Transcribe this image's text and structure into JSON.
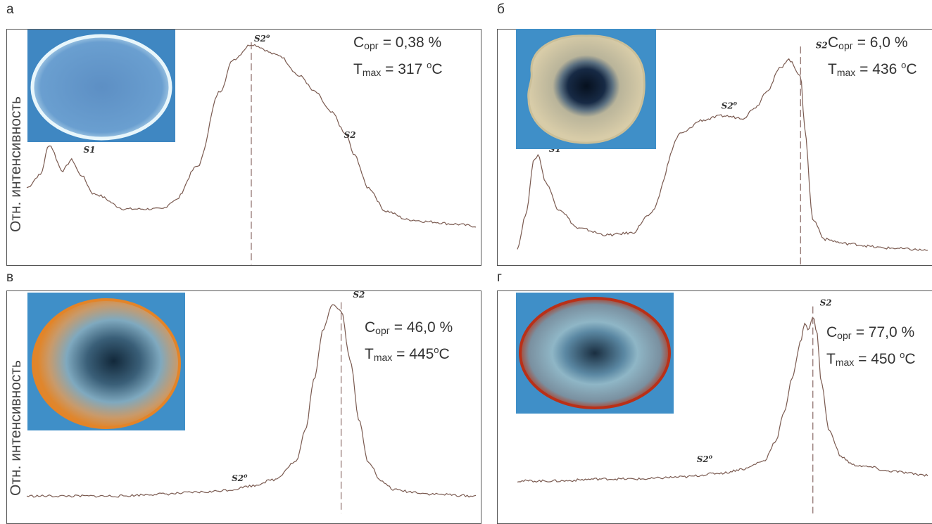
{
  "colors": {
    "curve": "#7a5a50",
    "dash": "#8a6a66",
    "frame": "#555555",
    "thumb_bg": "#3d8cc4"
  },
  "chart_data": [
    {
      "type": "line",
      "panel_letter": "а",
      "ylabel": "Отн. интенсивность",
      "stats": {
        "c_label": "C",
        "c_sub": "орг",
        "c_value": " = 0,38 %",
        "t_label": "T",
        "t_sub": "max",
        "t_value": " = 317 ",
        "t_deg": "o",
        "t_unit": "C"
      },
      "peaks": [
        {
          "label": "S1",
          "sup": ""
        },
        {
          "label": "S2",
          "sup": "o"
        },
        {
          "label": "S2",
          "sup": ""
        }
      ],
      "tmax_marker": true,
      "thumbnail": "oval rock sample with pale rim",
      "grid": false,
      "series": [
        {
          "x": [
            0,
            0.03,
            0.05,
            0.08,
            0.1,
            0.12,
            0.15,
            0.22,
            0.3,
            0.33,
            0.38,
            0.43,
            0.46,
            0.5,
            0.56,
            0.61,
            0.64,
            0.68,
            0.71,
            0.73,
            0.76,
            0.8,
            0.85,
            0.9,
            0.95,
            1.0
          ],
          "y": [
            0.3,
            0.36,
            0.5,
            0.38,
            0.43,
            0.36,
            0.27,
            0.2,
            0.2,
            0.24,
            0.4,
            0.75,
            0.9,
            0.97,
            0.92,
            0.82,
            0.75,
            0.65,
            0.55,
            0.45,
            0.3,
            0.19,
            0.15,
            0.14,
            0.13,
            0.12
          ]
        }
      ]
    },
    {
      "type": "line",
      "panel_letter": "б",
      "ylabel": "",
      "stats": {
        "c_label": "C",
        "c_sub": "орг",
        "c_value": " = 6,0 %",
        "t_label": "T",
        "t_sub": "max",
        "t_value": " = 436 ",
        "t_deg": "o",
        "t_unit": "C"
      },
      "peaks": [
        {
          "label": "S1",
          "sup": ""
        },
        {
          "label": "S2",
          "sup": "o"
        },
        {
          "label": "S2",
          "sup": ""
        }
      ],
      "tmax_marker": true,
      "thumbnail": "irregular rock sample with dark centre",
      "grid": false,
      "series": [
        {
          "x": [
            0,
            0.02,
            0.04,
            0.05,
            0.07,
            0.1,
            0.15,
            0.22,
            0.28,
            0.32,
            0.4,
            0.45,
            0.5,
            0.55,
            0.58,
            0.61,
            0.64,
            0.66,
            0.69,
            0.7,
            0.72,
            0.75,
            0.8,
            0.9,
            1.0
          ],
          "y": [
            0.05,
            0.2,
            0.45,
            0.48,
            0.35,
            0.23,
            0.14,
            0.11,
            0.12,
            0.2,
            0.58,
            0.64,
            0.66,
            0.65,
            0.7,
            0.78,
            0.88,
            0.92,
            0.85,
            0.6,
            0.18,
            0.09,
            0.07,
            0.05,
            0.04
          ]
        }
      ]
    },
    {
      "type": "line",
      "panel_letter": "в",
      "ylabel": "Отн. интенсивность",
      "stats": {
        "c_label": "C",
        "c_sub": "орг",
        "c_value": " = 46,0 %",
        "t_label": "T",
        "t_sub": "max",
        "t_value": " = 445",
        "t_deg": "o",
        "t_unit": "C"
      },
      "peaks": [
        {
          "label": "S2",
          "sup": "o"
        },
        {
          "label": "S2",
          "sup": ""
        }
      ],
      "tmax_marker": true,
      "thumbnail": "round rock sample with orange rim",
      "grid": false,
      "series": [
        {
          "x": [
            0,
            0.1,
            0.2,
            0.3,
            0.4,
            0.45,
            0.5,
            0.55,
            0.6,
            0.62,
            0.64,
            0.66,
            0.68,
            0.7,
            0.72,
            0.74,
            0.76,
            0.79,
            0.82,
            0.86,
            0.9,
            1.0
          ],
          "y": [
            0.03,
            0.03,
            0.03,
            0.04,
            0.05,
            0.06,
            0.08,
            0.11,
            0.2,
            0.35,
            0.6,
            0.85,
            0.97,
            0.94,
            0.7,
            0.4,
            0.2,
            0.1,
            0.06,
            0.05,
            0.04,
            0.03
          ]
        }
      ]
    },
    {
      "type": "line",
      "panel_letter": "г",
      "ylabel": "",
      "stats": {
        "c_label": "C",
        "c_sub": "орг",
        "c_value": " = 77,0 %",
        "t_label": "T",
        "t_sub": "max",
        "t_value": " = 450 ",
        "t_deg": "o",
        "t_unit": "C"
      },
      "peaks": [
        {
          "label": "S2",
          "sup": "o"
        },
        {
          "label": "S2",
          "sup": ""
        }
      ],
      "tmax_marker": true,
      "thumbnail": "round rock sample with red rim",
      "grid": false,
      "series": [
        {
          "x": [
            0,
            0.1,
            0.2,
            0.3,
            0.4,
            0.5,
            0.55,
            0.6,
            0.63,
            0.65,
            0.67,
            0.69,
            0.7,
            0.71,
            0.72,
            0.73,
            0.74,
            0.76,
            0.79,
            0.82,
            0.86,
            0.9,
            1.0
          ],
          "y": [
            0.1,
            0.1,
            0.11,
            0.11,
            0.12,
            0.14,
            0.16,
            0.2,
            0.3,
            0.45,
            0.62,
            0.8,
            0.9,
            0.86,
            0.93,
            0.85,
            0.6,
            0.35,
            0.22,
            0.18,
            0.17,
            0.15,
            0.13
          ]
        }
      ]
    }
  ]
}
